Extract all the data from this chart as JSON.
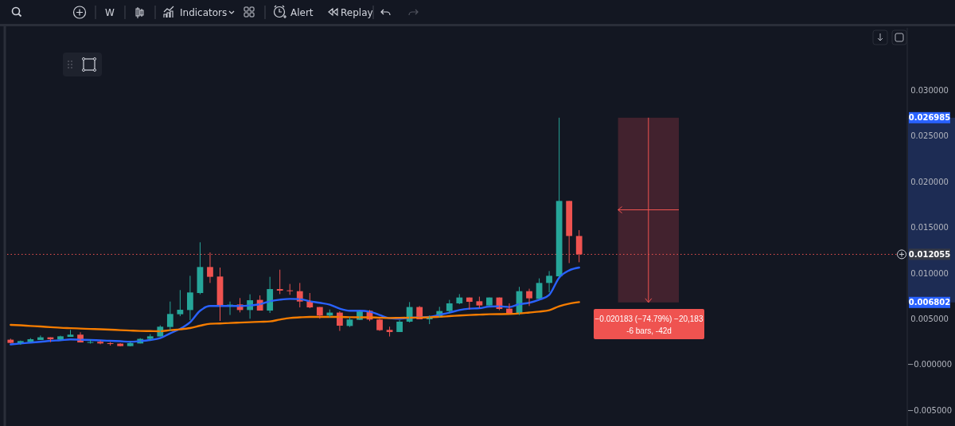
{
  "chart_data": {
    "type": "candlestick",
    "categories": [
      null,
      null,
      null,
      null,
      null,
      null,
      null,
      null,
      null,
      null,
      null,
      null,
      null,
      null,
      null,
      null,
      null,
      null,
      null,
      null,
      null,
      null,
      null,
      null,
      null,
      null,
      null,
      null,
      null,
      null,
      null,
      null,
      null,
      null,
      null,
      null,
      null,
      null,
      null,
      null,
      null,
      null,
      null,
      null,
      null,
      null,
      null,
      null,
      null,
      null,
      null,
      null,
      null,
      null,
      null,
      null,
      null,
      null
    ],
    "ohlc": [
      [
        0.00273,
        0.00284,
        0.00232,
        0.00238
      ],
      [
        0.00235,
        0.00264,
        0.00217,
        0.00258
      ],
      [
        0.00247,
        0.0029,
        0.00247,
        0.00278
      ],
      [
        0.0027,
        0.00319,
        0.0027,
        0.00299
      ],
      [
        0.00299,
        0.00299,
        0.00247,
        0.00278
      ],
      [
        0.00276,
        0.00317,
        0.00264,
        0.0031
      ],
      [
        0.00304,
        0.0038,
        0.00304,
        0.00328
      ],
      [
        0.00328,
        0.00354,
        0.00243,
        0.00243
      ],
      [
        0.00243,
        0.00276,
        0.0023,
        0.00247
      ],
      [
        0.0025,
        0.00264,
        0.00223,
        0.00232
      ],
      [
        0.00235,
        0.00247,
        0.00209,
        0.0023
      ],
      [
        0.0023,
        0.00235,
        0.002,
        0.00203
      ],
      [
        0.00203,
        0.00252,
        0.002,
        0.00235
      ],
      [
        0.00232,
        0.0029,
        0.00232,
        0.00282
      ],
      [
        0.00282,
        0.00334,
        0.00264,
        0.0031
      ],
      [
        0.00308,
        0.0043,
        0.00308,
        0.00415
      ],
      [
        0.00412,
        0.0069,
        0.00365,
        0.00554
      ],
      [
        0.00551,
        0.00815,
        0.0053,
        0.006
      ],
      [
        0.00597,
        0.00971,
        0.00487,
        0.00789
      ],
      [
        0.00783,
        0.01337,
        0.00769,
        0.01067
      ],
      [
        0.01067,
        0.01226,
        0.00893,
        0.0096
      ],
      [
        0.00963,
        0.01061,
        0.00478,
        0.00635
      ],
      [
        0.00635,
        0.0069,
        0.00543,
        0.00656
      ],
      [
        0.00658,
        0.00728,
        0.00571,
        0.00597
      ],
      [
        0.00597,
        0.00769,
        0.00502,
        0.00704
      ],
      [
        0.00708,
        0.00757,
        0.00591,
        0.00591
      ],
      [
        0.00591,
        0.0096,
        0.00565,
        0.00826
      ],
      [
        0.00826,
        0.01038,
        0.00771,
        0.00809
      ],
      [
        0.00812,
        0.00882,
        0.00763,
        0.00806
      ],
      [
        0.00803,
        0.00893,
        0.00626,
        0.0069
      ],
      [
        0.00693,
        0.00783,
        0.00617,
        0.00626
      ],
      [
        0.0063,
        0.0063,
        0.00502,
        0.00537
      ],
      [
        0.00537,
        0.00603,
        0.00517,
        0.00569
      ],
      [
        0.00569,
        0.00583,
        0.00369,
        0.00426
      ],
      [
        0.00423,
        0.00522,
        0.00412,
        0.00493
      ],
      [
        0.0049,
        0.00591,
        0.00487,
        0.00589
      ],
      [
        0.00589,
        0.00597,
        0.00476,
        0.00493
      ],
      [
        0.00493,
        0.00502,
        0.00369,
        0.00377
      ],
      [
        0.0038,
        0.00415,
        0.00308,
        0.00357
      ],
      [
        0.00357,
        0.00487,
        0.00357,
        0.0047
      ],
      [
        0.0047,
        0.00684,
        0.00461,
        0.0063
      ],
      [
        0.0063,
        0.00641,
        0.00496,
        0.00496
      ],
      [
        0.00496,
        0.00537,
        0.00443,
        0.00522
      ],
      [
        0.00517,
        0.00632,
        0.00517,
        0.00586
      ],
      [
        0.00586,
        0.00708,
        0.0056,
        0.0067
      ],
      [
        0.0067,
        0.00771,
        0.00661,
        0.00734
      ],
      [
        0.00734,
        0.00734,
        0.00603,
        0.00687
      ],
      [
        0.00693,
        0.00743,
        0.00617,
        0.00647
      ],
      [
        0.00647,
        0.00734,
        0.00643,
        0.00734
      ],
      [
        0.00734,
        0.00734,
        0.00595,
        0.00609
      ],
      [
        0.00612,
        0.0067,
        0.00554,
        0.0056
      ],
      [
        0.0056,
        0.0085,
        0.00543,
        0.00803
      ],
      [
        0.00803,
        0.0083,
        0.00641,
        0.00725
      ],
      [
        0.00719,
        0.00943,
        0.00719,
        0.00893
      ],
      [
        0.00893,
        0.01023,
        0.00791,
        0.00971
      ],
      [
        0.00965,
        0.026985,
        0.0096,
        0.01789
      ],
      [
        0.01789,
        0.01789,
        0.0111,
        0.01406
      ],
      [
        0.01406,
        0.0147,
        0.01119,
        0.012055
      ]
    ],
    "colors": [
      "#ef5350",
      "#26a69a",
      "#26a69a",
      "#26a69a",
      "#ef5350",
      "#26a69a",
      "#26a69a",
      "#ef5350",
      "#26a69a",
      "#ef5350",
      "#ef5350",
      "#ef5350",
      "#26a69a",
      "#26a69a",
      "#26a69a",
      "#26a69a",
      "#26a69a",
      "#26a69a",
      "#26a69a",
      "#26a69a",
      "#ef5350",
      "#ef5350",
      "#26a69a",
      "#ef5350",
      "#26a69a",
      "#ef5350",
      "#26a69a",
      "#ef5350",
      "#ef5350",
      "#ef5350",
      "#ef5350",
      "#ef5350",
      "#26a69a",
      "#ef5350",
      "#26a69a",
      "#26a69a",
      "#ef5350",
      "#ef5350",
      "#ef5350",
      "#26a69a",
      "#26a69a",
      "#ef5350",
      "#26a69a",
      "#26a69a",
      "#26a69a",
      "#26a69a",
      "#ef5350",
      "#ef5350",
      "#26a69a",
      "#ef5350",
      "#ef5350",
      "#26a69a",
      "#ef5350",
      "#26a69a",
      "#26a69a",
      "#26a69a",
      "#ef5350",
      "#ef5350"
    ],
    "series": [
      {
        "type": "line",
        "color": "#2962ff",
        "values": [
          0.00221,
          0.00232,
          0.00241,
          0.0025,
          0.00261,
          0.00267,
          0.00276,
          0.00273,
          0.0027,
          0.00265,
          0.00261,
          0.00256,
          0.0025,
          0.00258,
          0.0027,
          0.0029,
          0.00343,
          0.00391,
          0.00464,
          0.00589,
          0.00641,
          0.00641,
          0.00641,
          0.00641,
          0.00647,
          0.00661,
          0.00693,
          0.0071,
          0.00719,
          0.00717,
          0.00693,
          0.00676,
          0.00656,
          0.00612,
          0.00589,
          0.00589,
          0.0058,
          0.00543,
          0.00508,
          0.00502,
          0.00513,
          0.00517,
          0.00522,
          0.00545,
          0.00569,
          0.00597,
          0.00612,
          0.00617,
          0.00635,
          0.00638,
          0.0063,
          0.00661,
          0.00676,
          0.0071,
          0.00763,
          0.00951,
          0.0103,
          0.01061
        ]
      },
      {
        "type": "line",
        "color": "#f57c00",
        "values": [
          0.00435,
          0.0043,
          0.00423,
          0.00417,
          0.0041,
          0.00403,
          0.00399,
          0.00395,
          0.0039,
          0.00387,
          0.00383,
          0.00377,
          0.00373,
          0.00369,
          0.00367,
          0.00365,
          0.00377,
          0.00386,
          0.004,
          0.00426,
          0.00447,
          0.0045,
          0.00456,
          0.0046,
          0.00464,
          0.00469,
          0.00473,
          0.00493,
          0.0051,
          0.00517,
          0.00522,
          0.00522,
          0.00522,
          0.00522,
          0.00519,
          0.00517,
          0.00517,
          0.00513,
          0.0051,
          0.00512,
          0.00513,
          0.00515,
          0.00517,
          0.00523,
          0.0053,
          0.00537,
          0.00543,
          0.00547,
          0.00551,
          0.00552,
          0.00554,
          0.0056,
          0.0057,
          0.0058,
          0.00595,
          0.00638,
          0.00667,
          0.00684
        ]
      }
    ],
    "ylim": [
      -0.0067,
      0.0368
    ],
    "yticks": [
      {
        "value": 0.03,
        "label": "0.030000"
      },
      {
        "value": 0.026985,
        "label": "0.026985"
      },
      {
        "value": 0.025,
        "label": "0.025000"
      },
      {
        "value": 0.02,
        "label": "0.020000"
      },
      {
        "value": 0.015,
        "label": "0.015000"
      },
      {
        "value": 0.01,
        "label": "0.010000"
      },
      {
        "value": 0.006802,
        "label": "0.006802"
      },
      {
        "value": 0.005,
        "label": "0.005000"
      },
      {
        "value": 0,
        "label": "−0.000000"
      },
      {
        "value": -0.005,
        "label": "−0.005000"
      }
    ],
    "ref_lines": [
      {
        "axis": "y",
        "value": 0.012055,
        "label": "0.012055",
        "color": "#ef5350",
        "line_style": "dotted"
      }
    ],
    "annotations": [
      "−0.020183 (−74.79%) −20,183",
      "-6 bars, -42d",
      "W",
      "Indicators",
      "Alert",
      "Replay"
    ],
    "grid": false,
    "line_style": "solid",
    "marker": "none"
  }
}
